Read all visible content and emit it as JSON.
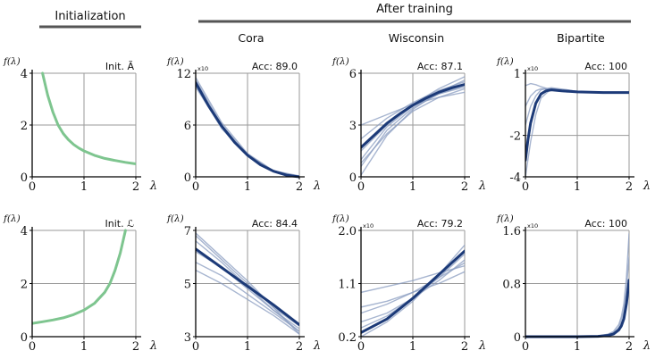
{
  "headers": {
    "left": "Initialization",
    "right": "After training"
  },
  "colors": {
    "init": "#7ec58f",
    "main": "#1c3a78",
    "faint": "#8a9cc0",
    "grid": "#9a9a9a",
    "bar": "#555555"
  },
  "y_label": "f(λ)",
  "x_label": "λ",
  "chart_data": [
    {
      "id": "init-top",
      "type": "line",
      "title": "",
      "annotation": "Init. Ã",
      "xlim": [
        0,
        2
      ],
      "ylim": [
        0,
        4
      ],
      "xticks": [
        "0",
        "1",
        "2"
      ],
      "yticks": [
        "0",
        "2",
        "4"
      ],
      "multiplier": "",
      "series": [
        {
          "role": "init",
          "x": [
            0.2,
            0.3,
            0.4,
            0.5,
            0.6,
            0.7,
            0.8,
            0.9,
            1.0,
            1.2,
            1.4,
            1.6,
            1.8,
            2.0
          ],
          "y": [
            4.0,
            3.15,
            2.5,
            2.0,
            1.67,
            1.43,
            1.25,
            1.11,
            1.0,
            0.83,
            0.71,
            0.63,
            0.56,
            0.5
          ]
        }
      ]
    },
    {
      "id": "cora-top",
      "type": "line",
      "title": "Cora",
      "annotation": "Acc: 89.0",
      "xlim": [
        0,
        2
      ],
      "ylim": [
        0,
        12
      ],
      "xticks": [
        "0",
        "1",
        "2"
      ],
      "yticks": [
        "0",
        "6",
        "12"
      ],
      "multiplier": "x10",
      "series": [
        {
          "role": "faint",
          "x": [
            0,
            0.5,
            1,
            1.5,
            2
          ],
          "y": [
            11.5,
            6.3,
            2.7,
            0.7,
            0.0
          ]
        },
        {
          "role": "faint",
          "x": [
            0,
            0.5,
            1,
            1.5,
            2
          ],
          "y": [
            10.4,
            5.7,
            2.5,
            0.6,
            0.0
          ]
        },
        {
          "role": "faint",
          "x": [
            0,
            0.5,
            1,
            1.5,
            2
          ],
          "y": [
            11.2,
            6.0,
            2.6,
            0.7,
            0.1
          ]
        },
        {
          "role": "faint",
          "x": [
            0,
            0.5,
            1,
            1.5,
            2
          ],
          "y": [
            10.6,
            5.6,
            2.4,
            0.6,
            0.0
          ]
        },
        {
          "role": "main",
          "x": [
            0,
            0.25,
            0.5,
            0.75,
            1,
            1.25,
            1.5,
            1.75,
            2
          ],
          "y": [
            10.9,
            8.2,
            5.9,
            4.0,
            2.5,
            1.4,
            0.65,
            0.2,
            0.0
          ]
        }
      ]
    },
    {
      "id": "wisconsin-top",
      "type": "line",
      "title": "Wisconsin",
      "annotation": "Acc: 87.1",
      "xlim": [
        0,
        2
      ],
      "ylim": [
        0,
        6
      ],
      "xticks": [
        "0",
        "1",
        "2"
      ],
      "yticks": [
        "0",
        "3",
        "6"
      ],
      "multiplier": "",
      "series": [
        {
          "role": "faint",
          "x": [
            0,
            0.5,
            1,
            1.5,
            2
          ],
          "y": [
            0.1,
            2.4,
            3.9,
            4.9,
            5.6
          ]
        },
        {
          "role": "faint",
          "x": [
            0,
            0.5,
            1,
            1.5,
            2
          ],
          "y": [
            0.6,
            2.7,
            4.0,
            4.8,
            5.3
          ]
        },
        {
          "role": "faint",
          "x": [
            0,
            0.5,
            1,
            1.5,
            2
          ],
          "y": [
            1.0,
            2.9,
            4.1,
            4.8,
            5.2
          ]
        },
        {
          "role": "faint",
          "x": [
            0,
            0.5,
            1,
            1.5,
            2
          ],
          "y": [
            2.2,
            3.4,
            4.3,
            5.0,
            5.5
          ]
        },
        {
          "role": "faint",
          "x": [
            0,
            0.5,
            1,
            1.5,
            2
          ],
          "y": [
            3.0,
            3.6,
            4.2,
            4.6,
            4.9
          ]
        },
        {
          "role": "faint",
          "x": [
            0,
            0.5,
            1,
            1.5,
            2
          ],
          "y": [
            1.5,
            3.0,
            4.2,
            5.1,
            5.8
          ]
        },
        {
          "role": "faint",
          "x": [
            0,
            0.5,
            1,
            1.5,
            2
          ],
          "y": [
            0.8,
            2.5,
            3.8,
            4.6,
            5.1
          ]
        },
        {
          "role": "main",
          "x": [
            0,
            0.25,
            0.5,
            0.75,
            1,
            1.25,
            1.5,
            1.75,
            2
          ],
          "y": [
            1.7,
            2.4,
            3.1,
            3.65,
            4.15,
            4.55,
            4.9,
            5.15,
            5.35
          ]
        }
      ]
    },
    {
      "id": "bipartite-top",
      "type": "line",
      "title": "Bipartite",
      "annotation": "Acc: 100",
      "xlim": [
        0,
        2
      ],
      "ylim": [
        -4,
        1
      ],
      "xticks": [
        "0",
        "1",
        "2"
      ],
      "yticks": [
        "-4",
        "-2",
        "1"
      ],
      "multiplier": "x10",
      "series": [
        {
          "role": "faint",
          "x": [
            0,
            0.1,
            0.2,
            0.3,
            0.5,
            0.8,
            1.0,
            1.5,
            2
          ],
          "y": [
            -4.0,
            -2.3,
            -1.0,
            -0.2,
            0.25,
            0.2,
            0.12,
            0.08,
            0.07
          ]
        },
        {
          "role": "faint",
          "x": [
            0,
            0.1,
            0.2,
            0.3,
            0.5,
            0.8,
            1.0,
            1.5,
            2
          ],
          "y": [
            0.4,
            0.5,
            0.45,
            0.35,
            0.2,
            0.1,
            0.08,
            0.07,
            0.07
          ]
        },
        {
          "role": "faint",
          "x": [
            0,
            0.1,
            0.2,
            0.3,
            0.5,
            0.8,
            1.0,
            1.5,
            2
          ],
          "y": [
            -0.6,
            -0.1,
            0.15,
            0.25,
            0.25,
            0.15,
            0.1,
            0.07,
            0.07
          ]
        },
        {
          "role": "faint",
          "x": [
            0,
            0.1,
            0.2,
            0.3,
            0.5,
            0.8,
            1.0,
            1.5,
            2
          ],
          "y": [
            -1.5,
            -0.6,
            -0.1,
            0.2,
            0.3,
            0.2,
            0.12,
            0.08,
            0.07
          ]
        },
        {
          "role": "main",
          "x": [
            0,
            0.05,
            0.1,
            0.2,
            0.3,
            0.4,
            0.5,
            0.7,
            1.0,
            1.5,
            2
          ],
          "y": [
            -3.2,
            -2.2,
            -1.4,
            -0.45,
            0.0,
            0.15,
            0.2,
            0.15,
            0.1,
            0.07,
            0.07
          ]
        }
      ]
    },
    {
      "id": "init-bottom",
      "type": "line",
      "title": "",
      "annotation": "Init. ℒ",
      "xlim": [
        0,
        2
      ],
      "ylim": [
        0,
        4
      ],
      "xticks": [
        "0",
        "1",
        "2"
      ],
      "yticks": [
        "0",
        "2",
        "4"
      ],
      "multiplier": "",
      "series": [
        {
          "role": "init",
          "x": [
            0,
            0.2,
            0.4,
            0.6,
            0.8,
            1.0,
            1.2,
            1.4,
            1.5,
            1.6,
            1.7,
            1.8
          ],
          "y": [
            0.5,
            0.56,
            0.63,
            0.71,
            0.83,
            1.0,
            1.25,
            1.67,
            2.0,
            2.5,
            3.15,
            4.0
          ]
        }
      ]
    },
    {
      "id": "cora-bottom",
      "type": "line",
      "title": "",
      "annotation": "Acc: 84.4",
      "xlim": [
        0,
        2
      ],
      "ylim": [
        3,
        7
      ],
      "xticks": [
        "0",
        "1",
        "2"
      ],
      "yticks": [
        "3",
        "5",
        "7"
      ],
      "multiplier": "",
      "series": [
        {
          "role": "faint",
          "x": [
            0,
            0.5,
            1,
            1.5,
            2
          ],
          "y": [
            6.9,
            6.0,
            5.1,
            4.1,
            3.1
          ]
        },
        {
          "role": "faint",
          "x": [
            0,
            0.5,
            1,
            1.5,
            2
          ],
          "y": [
            6.6,
            5.8,
            4.9,
            4.0,
            3.2
          ]
        },
        {
          "role": "faint",
          "x": [
            0,
            0.5,
            1,
            1.5,
            2
          ],
          "y": [
            6.2,
            5.6,
            4.8,
            4.0,
            3.3
          ]
        },
        {
          "role": "faint",
          "x": [
            0,
            0.5,
            1,
            1.5,
            2
          ],
          "y": [
            5.8,
            5.3,
            4.6,
            3.9,
            3.2
          ]
        },
        {
          "role": "faint",
          "x": [
            0,
            0.5,
            1,
            1.5,
            2
          ],
          "y": [
            5.5,
            5.0,
            4.4,
            3.8,
            3.1
          ]
        },
        {
          "role": "faint",
          "x": [
            0,
            0.5,
            1,
            1.5,
            2
          ],
          "y": [
            6.8,
            5.9,
            5.0,
            4.1,
            3.4
          ]
        },
        {
          "role": "main",
          "x": [
            0,
            0.5,
            1,
            1.5,
            2
          ],
          "y": [
            6.3,
            5.6,
            4.9,
            4.2,
            3.45
          ]
        }
      ]
    },
    {
      "id": "wisconsin-bottom",
      "type": "line",
      "title": "",
      "annotation": "Acc: 79.2",
      "xlim": [
        0,
        2
      ],
      "ylim": [
        0.2,
        2.0
      ],
      "xticks": [
        "0",
        "1",
        "2"
      ],
      "yticks": [
        "0.2",
        "1.1",
        "2.0"
      ],
      "multiplier": "x10",
      "series": [
        {
          "role": "faint",
          "x": [
            0,
            0.5,
            1,
            1.5,
            2
          ],
          "y": [
            0.2,
            0.45,
            0.8,
            1.25,
            1.75
          ]
        },
        {
          "role": "faint",
          "x": [
            0,
            0.5,
            1,
            1.5,
            2
          ],
          "y": [
            0.45,
            0.6,
            0.85,
            1.15,
            1.5
          ]
        },
        {
          "role": "faint",
          "x": [
            0,
            0.5,
            1,
            1.5,
            2
          ],
          "y": [
            0.6,
            0.75,
            0.95,
            1.2,
            1.45
          ]
        },
        {
          "role": "faint",
          "x": [
            0,
            0.5,
            1,
            1.5,
            2
          ],
          "y": [
            0.95,
            1.05,
            1.15,
            1.28,
            1.4
          ]
        },
        {
          "role": "faint",
          "x": [
            0,
            0.5,
            1,
            1.5,
            2
          ],
          "y": [
            0.7,
            0.8,
            0.95,
            1.1,
            1.3
          ]
        },
        {
          "role": "faint",
          "x": [
            0,
            0.5,
            1,
            1.5,
            2
          ],
          "y": [
            0.35,
            0.55,
            0.85,
            1.2,
            1.6
          ]
        },
        {
          "role": "main",
          "x": [
            0,
            0.5,
            1,
            1.5,
            2
          ],
          "y": [
            0.27,
            0.5,
            0.85,
            1.25,
            1.65
          ]
        }
      ]
    },
    {
      "id": "bipartite-bottom",
      "type": "line",
      "title": "",
      "annotation": "Acc: 100",
      "xlim": [
        0,
        2
      ],
      "ylim": [
        0,
        1.6
      ],
      "xticks": [
        "0",
        "1",
        "2"
      ],
      "yticks": [
        "0",
        "0.8",
        "1.6"
      ],
      "multiplier": "x10",
      "series": [
        {
          "role": "faint",
          "x": [
            0,
            1.0,
            1.4,
            1.6,
            1.7,
            1.8,
            1.85,
            1.9,
            1.95,
            2.0
          ],
          "y": [
            0,
            0,
            0.01,
            0.04,
            0.08,
            0.18,
            0.3,
            0.5,
            0.9,
            1.55
          ]
        },
        {
          "role": "faint",
          "x": [
            0,
            1.0,
            1.4,
            1.6,
            1.7,
            1.8,
            1.85,
            1.9,
            1.95,
            2.0
          ],
          "y": [
            0,
            0,
            0.01,
            0.03,
            0.06,
            0.14,
            0.24,
            0.4,
            0.75,
            1.2
          ]
        },
        {
          "role": "main",
          "x": [
            0,
            1.0,
            1.4,
            1.6,
            1.7,
            1.8,
            1.85,
            1.9,
            1.95,
            2.0
          ],
          "y": [
            0,
            0,
            0.005,
            0.02,
            0.04,
            0.1,
            0.16,
            0.27,
            0.5,
            0.85
          ]
        }
      ]
    }
  ]
}
